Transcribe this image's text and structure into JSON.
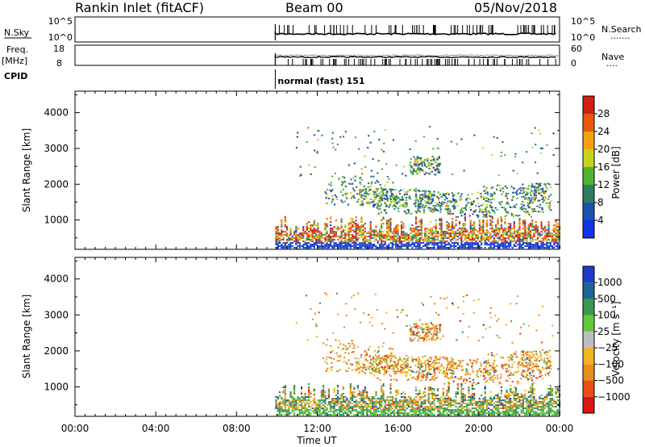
{
  "header": {
    "station": "Rankin Inlet (fitACF)",
    "beam": "Beam 00",
    "date": "05/Nov/2018"
  },
  "strip_panels": {
    "nsky": {
      "label": "N.Sky",
      "left_ticks": [
        "10^5",
        "10^0"
      ],
      "right_ticks": [
        "10^5",
        "10^0"
      ],
      "right_label": "N.Search",
      "right_dots": "......."
    },
    "freq": {
      "label_line1": "Freq.",
      "label_line2": "[MHz]",
      "left_ticks": [
        "18",
        "8"
      ],
      "right_ticks": [
        "60",
        "0"
      ],
      "right_label": "Nave",
      "right_dots": "...."
    },
    "cpid": {
      "label": "CPID",
      "mode": "normal (fast) 151",
      "mode_start_hour": 9.92
    },
    "data_start_hour": 9.92
  },
  "chart_data": [
    {
      "type": "heatmap",
      "name": "power",
      "ylabel": "Slant Range [km]",
      "colorbar_label": "Power [dB]",
      "yticks": [
        "1000",
        "2000",
        "3000",
        "4000"
      ],
      "colorbar_ticks": [
        "4",
        "8",
        "12",
        "16",
        "20",
        "24",
        "28"
      ],
      "colorbar_colors": [
        "#1432e6",
        "#1e50b4",
        "#2d7d5a",
        "#50b432",
        "#c8d21e",
        "#f5a014",
        "#e65a0a",
        "#d21e14"
      ],
      "ylim": [
        180,
        4600
      ],
      "xlim": [
        0,
        24
      ]
    },
    {
      "type": "heatmap",
      "name": "velocity",
      "ylabel": "Slant Range [km]",
      "colorbar_label": "Velocity [m s⁻¹]",
      "yticks": [
        "1000",
        "2000",
        "3000",
        "4000"
      ],
      "colorbar_ticks": [
        "1000",
        "500",
        "100",
        "25",
        "−25",
        "−100",
        "−500",
        "−1000"
      ],
      "colorbar_colors": [
        "#1e3cc8",
        "#1e6496",
        "#3c9650",
        "#64c83c",
        "#bebebe",
        "#f0b41e",
        "#eb8c1e",
        "#e65014",
        "#dc1414"
      ],
      "ylim": [
        180,
        4600
      ],
      "xlim": [
        0,
        24
      ]
    }
  ],
  "xaxis": {
    "label": "Time UT",
    "ticks": [
      "00:00",
      "04:00",
      "08:00",
      "12:00",
      "16:00",
      "20:00",
      "00:00"
    ]
  }
}
